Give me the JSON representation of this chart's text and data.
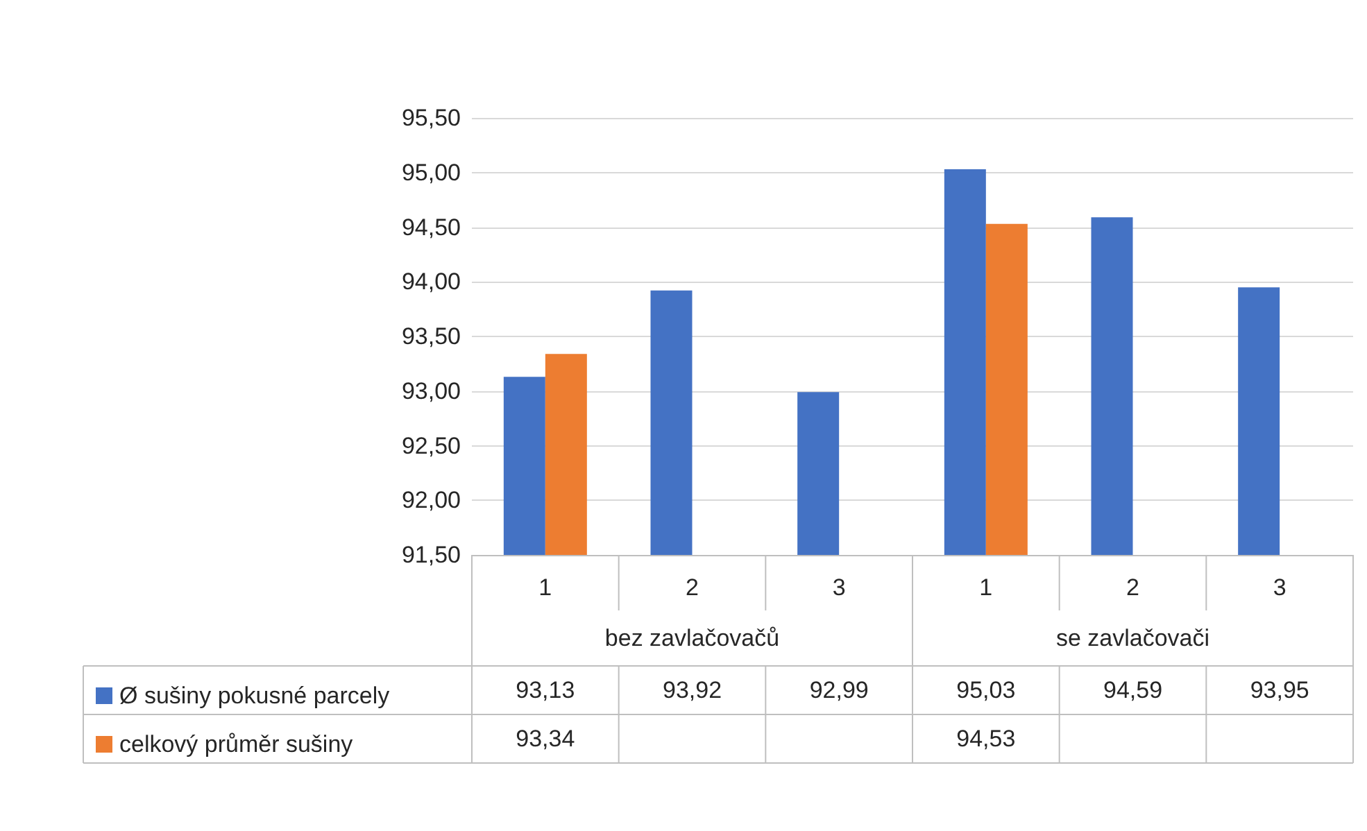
{
  "chart_data": {
    "type": "bar",
    "categories": [
      "1",
      "2",
      "3",
      "1",
      "2",
      "3"
    ],
    "annotations": [
      "bez zavlačovačů",
      "se zavlačovači"
    ],
    "series": [
      {
        "name": "Ø sušiny pokusné parcely",
        "color": "#4472c4",
        "values": [
          93.13,
          93.92,
          92.99,
          95.03,
          94.59,
          93.95
        ],
        "value_labels": [
          "93,13",
          "93,92",
          "92,99",
          "95,03",
          "94,59",
          "93,95"
        ]
      },
      {
        "name": "celkový průměr sušiny",
        "color": "#ed7d31",
        "values": [
          93.34,
          null,
          null,
          94.53,
          null,
          null
        ],
        "value_labels": [
          "93,34",
          null,
          null,
          "94,53",
          null,
          null
        ]
      }
    ],
    "ylim": [
      91.5,
      95.5
    ],
    "yticks": [
      {
        "value": 91.5,
        "label": "91,50"
      },
      {
        "value": 92,
        "label": "92,00"
      },
      {
        "value": 92.5,
        "label": "92,50"
      },
      {
        "value": 93,
        "label": "93,00"
      },
      {
        "value": 93.5,
        "label": "93,50"
      },
      {
        "value": 94,
        "label": "94,00"
      },
      {
        "value": 94.5,
        "label": "94,50"
      },
      {
        "value": 95,
        "label": "95,00"
      },
      {
        "value": 95.5,
        "label": "95,50"
      }
    ],
    "grid": "y",
    "legend": "bottom left"
  }
}
